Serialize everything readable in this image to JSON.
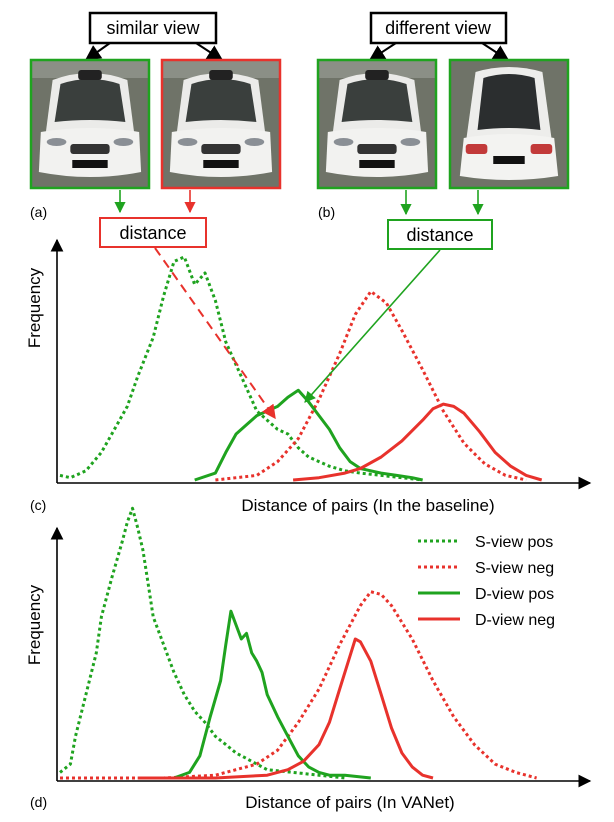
{
  "panel_a": {
    "label": "(a)",
    "box_label": "similar view",
    "distance_label": "distance"
  },
  "panel_b": {
    "label": "(b)",
    "box_label": "different view",
    "distance_label": "distance"
  },
  "colors": {
    "green": "#1fa31f",
    "red": "#e8322c",
    "black": "#000000"
  },
  "chart_data": [
    {
      "type": "line",
      "panel_label": "(c)",
      "xlabel": "Distance of pairs (In the baseline)",
      "ylabel": "Frequency",
      "xlim": [
        0,
        1
      ],
      "ylim": [
        0,
        1
      ],
      "series": [
        {
          "key": "s_pos",
          "style": "dotted",
          "color": "#1fa31f",
          "name": "",
          "x": [
            0.0,
            0.02,
            0.05,
            0.08,
            0.1,
            0.13,
            0.15,
            0.18,
            0.2,
            0.22,
            0.24,
            0.26,
            0.28,
            0.3,
            0.32,
            0.34,
            0.36,
            0.38,
            0.4,
            0.42,
            0.44,
            0.46,
            0.48,
            0.5,
            0.52,
            0.55,
            0.58,
            0.62,
            0.7
          ],
          "y": [
            0.02,
            0.01,
            0.04,
            0.12,
            0.2,
            0.32,
            0.45,
            0.62,
            0.8,
            0.95,
            0.97,
            0.85,
            0.9,
            0.78,
            0.6,
            0.5,
            0.4,
            0.3,
            0.26,
            0.22,
            0.2,
            0.14,
            0.1,
            0.08,
            0.06,
            0.04,
            0.03,
            0.02,
            0.0
          ]
        },
        {
          "key": "s_neg",
          "style": "dotted",
          "color": "#e8322c",
          "name": "",
          "x": [
            0.3,
            0.38,
            0.42,
            0.46,
            0.5,
            0.54,
            0.57,
            0.6,
            0.63,
            0.66,
            0.7,
            0.74,
            0.78,
            0.82,
            0.86,
            0.9
          ],
          "y": [
            0.0,
            0.02,
            0.08,
            0.18,
            0.35,
            0.55,
            0.72,
            0.82,
            0.77,
            0.65,
            0.48,
            0.3,
            0.16,
            0.07,
            0.02,
            0.0
          ]
        },
        {
          "key": "d_pos",
          "style": "solid",
          "color": "#1fa31f",
          "name": "",
          "x": [
            0.26,
            0.3,
            0.32,
            0.34,
            0.36,
            0.38,
            0.4,
            0.42,
            0.44,
            0.46,
            0.48,
            0.5,
            0.52,
            0.54,
            0.56,
            0.58,
            0.6,
            0.62,
            0.65,
            0.68,
            0.7
          ],
          "y": [
            0.0,
            0.03,
            0.12,
            0.2,
            0.24,
            0.28,
            0.3,
            0.32,
            0.36,
            0.39,
            0.34,
            0.28,
            0.22,
            0.14,
            0.08,
            0.05,
            0.04,
            0.03,
            0.02,
            0.01,
            0.0
          ]
        },
        {
          "key": "d_neg",
          "style": "solid",
          "color": "#e8322c",
          "name": "",
          "x": [
            0.45,
            0.5,
            0.55,
            0.58,
            0.62,
            0.66,
            0.7,
            0.72,
            0.74,
            0.76,
            0.78,
            0.81,
            0.84,
            0.87,
            0.9,
            0.93
          ],
          "y": [
            0.0,
            0.01,
            0.03,
            0.05,
            0.1,
            0.17,
            0.26,
            0.31,
            0.33,
            0.32,
            0.29,
            0.21,
            0.12,
            0.06,
            0.02,
            0.0
          ]
        }
      ]
    },
    {
      "type": "line",
      "panel_label": "(d)",
      "xlabel": "Distance of pairs (In VANet)",
      "ylabel": "Frequency",
      "xlim": [
        0,
        1
      ],
      "ylim": [
        0,
        1
      ],
      "legend": {
        "placement": "top-right",
        "entries": [
          {
            "label": "S-view pos",
            "series": "s_pos"
          },
          {
            "label": "S-view neg",
            "series": "s_neg"
          },
          {
            "label": "D-view pos",
            "series": "d_pos"
          },
          {
            "label": "D-view neg",
            "series": "d_neg"
          }
        ]
      },
      "series": [
        {
          "key": "s_pos",
          "style": "dotted",
          "color": "#1fa31f",
          "name": "S-view pos",
          "x": [
            0.0,
            0.02,
            0.03,
            0.05,
            0.07,
            0.08,
            0.1,
            0.12,
            0.13,
            0.14,
            0.15,
            0.16,
            0.17,
            0.18,
            0.2,
            0.22,
            0.24,
            0.26,
            0.28,
            0.3,
            0.32,
            0.34,
            0.36,
            0.38,
            0.4,
            0.45,
            0.5,
            0.55
          ],
          "y": [
            0.02,
            0.05,
            0.15,
            0.3,
            0.45,
            0.58,
            0.72,
            0.85,
            0.92,
            0.97,
            0.9,
            0.82,
            0.7,
            0.58,
            0.48,
            0.38,
            0.3,
            0.24,
            0.2,
            0.15,
            0.12,
            0.09,
            0.07,
            0.05,
            0.03,
            0.02,
            0.01,
            0.0
          ]
        },
        {
          "key": "s_neg",
          "style": "dotted",
          "color": "#e8322c",
          "name": "S-view neg",
          "x": [
            0.0,
            0.2,
            0.3,
            0.38,
            0.42,
            0.46,
            0.5,
            0.54,
            0.58,
            0.6,
            0.62,
            0.64,
            0.68,
            0.72,
            0.76,
            0.8,
            0.84,
            0.88,
            0.92
          ],
          "y": [
            0.0,
            0.0,
            0.01,
            0.05,
            0.1,
            0.2,
            0.32,
            0.48,
            0.62,
            0.67,
            0.66,
            0.62,
            0.5,
            0.35,
            0.22,
            0.12,
            0.05,
            0.02,
            0.0
          ]
        },
        {
          "key": "d_pos",
          "style": "solid",
          "color": "#1fa31f",
          "name": "D-view pos",
          "x": [
            0.22,
            0.25,
            0.27,
            0.29,
            0.31,
            0.32,
            0.33,
            0.34,
            0.35,
            0.36,
            0.37,
            0.38,
            0.39,
            0.4,
            0.42,
            0.44,
            0.46,
            0.48,
            0.5,
            0.52,
            0.55,
            0.6
          ],
          "y": [
            0.0,
            0.02,
            0.08,
            0.22,
            0.35,
            0.48,
            0.6,
            0.55,
            0.5,
            0.52,
            0.45,
            0.42,
            0.38,
            0.3,
            0.22,
            0.15,
            0.08,
            0.04,
            0.02,
            0.01,
            0.01,
            0.0
          ]
        },
        {
          "key": "d_neg",
          "style": "solid",
          "color": "#e8322c",
          "name": "D-view neg",
          "x": [
            0.15,
            0.3,
            0.4,
            0.44,
            0.47,
            0.5,
            0.52,
            0.54,
            0.56,
            0.57,
            0.58,
            0.6,
            0.62,
            0.64,
            0.66,
            0.68,
            0.7,
            0.72
          ],
          "y": [
            0.0,
            0.0,
            0.01,
            0.03,
            0.06,
            0.12,
            0.2,
            0.32,
            0.44,
            0.5,
            0.49,
            0.42,
            0.3,
            0.18,
            0.09,
            0.04,
            0.01,
            0.0
          ]
        }
      ]
    }
  ]
}
